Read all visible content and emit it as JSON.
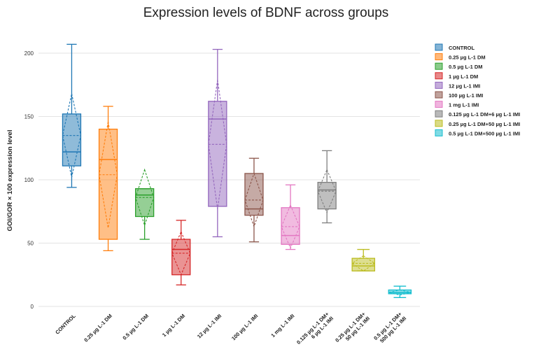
{
  "chart_data": {
    "type": "box",
    "title": "Expression levels of BDNF across groups",
    "xlabel": "",
    "ylabel": "GOI/GOR × 100 expression level",
    "ylim": [
      0,
      215
    ],
    "yticks": [
      0,
      50,
      100,
      150,
      200
    ],
    "grid": true,
    "legend_position": "right",
    "series": [
      {
        "name": "CONTROL",
        "tick_label": [
          "CONTROL"
        ],
        "color": "#1f77b4",
        "min": 94,
        "q1": 111,
        "median": 122,
        "q3": 152,
        "max": 207,
        "mean": 135,
        "sd": 33
      },
      {
        "name": "0.25 µg L-1 DM",
        "tick_label": [
          "0.25 µg L-1 DM"
        ],
        "color": "#ff7f0e",
        "min": 44,
        "q1": 53,
        "median": 116,
        "q3": 140,
        "max": 158,
        "mean": 104,
        "sd": 42
      },
      {
        "name": "0.5 µg L-1 DM",
        "tick_label": [
          "0.5 µg L-1 DM"
        ],
        "color": "#2ca02c",
        "min": 53,
        "q1": 71,
        "median": 88,
        "q3": 93,
        "max": 93,
        "mean": 86,
        "sd": 22
      },
      {
        "name": "1 µg L-1 DM",
        "tick_label": [
          "1 µg L-1 DM"
        ],
        "color": "#d62728",
        "min": 17,
        "q1": 25,
        "median": 45,
        "q3": 53,
        "max": 68,
        "mean": 42,
        "sd": 17
      },
      {
        "name": "12 µg L-1 IMI",
        "tick_label": [
          "12 µg L-1 IMI"
        ],
        "color": "#9467bd",
        "min": 55,
        "q1": 79,
        "median": 148,
        "q3": 162,
        "max": 203,
        "mean": 128,
        "sd": 51
      },
      {
        "name": "100 µg L-1 IMI",
        "tick_label": [
          "100 µg L-1 IMI"
        ],
        "color": "#8c564b",
        "min": 51,
        "q1": 72,
        "median": 77,
        "q3": 105,
        "max": 117,
        "mean": 84,
        "sd": 21
      },
      {
        "name": "1 mg L-1 IMI",
        "tick_label": [
          "1 mg L-1 IMI"
        ],
        "color": "#e377c2",
        "min": 45,
        "q1": 49,
        "median": 56,
        "q3": 78,
        "max": 96,
        "mean": 63,
        "sd": 17
      },
      {
        "name": "0.125 µg L-1 DM+6 µg L-1 IMI",
        "tick_label": [
          "0.125 µg L-1 DM+",
          "6 µg L-1 IMI"
        ],
        "color": "#7f7f7f",
        "min": 66,
        "q1": 77,
        "median": 92,
        "q3": 98,
        "max": 123,
        "mean": 91,
        "sd": 17
      },
      {
        "name": "0.25 µg L-1 DM+50 µg L-1 IMI",
        "tick_label": [
          "0.25 µg L-1 DM+",
          "50 µg L-1 IMI"
        ],
        "color": "#bcbd22",
        "min": 28,
        "q1": 28,
        "median": 32,
        "q3": 38,
        "max": 45,
        "mean": 34,
        "sd": 6
      },
      {
        "name": "0.5 µg L-1 DM+500 µg L-1 IMI",
        "tick_label": [
          "0.5 µg L-1 DM+",
          "500 µg L-1 IMI"
        ],
        "color": "#17becf",
        "min": 7,
        "q1": 10,
        "median": 11,
        "q3": 13,
        "max": 16,
        "mean": 11,
        "sd": 2
      }
    ]
  }
}
